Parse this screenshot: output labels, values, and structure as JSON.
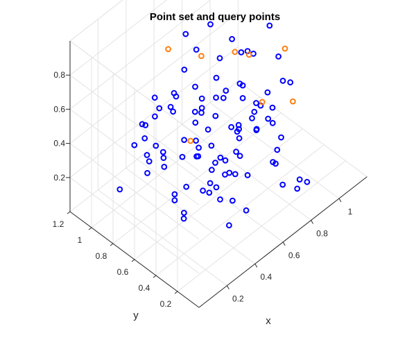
{
  "chart_data": {
    "type": "scatter",
    "title": "Point set and query points",
    "xlabel": "x",
    "ylabel": "y",
    "zlabel": "",
    "grid": true,
    "legend": "none",
    "x_ticks": [
      "0.2",
      "0.4",
      "0.6",
      "0.8",
      "1"
    ],
    "y_ticks": [
      "0.2",
      "0.4",
      "0.6",
      "0.8",
      "1",
      "1.2"
    ],
    "z_ticks": [
      "0.2",
      "0.4",
      "0.6",
      "0.8"
    ],
    "colors": {
      "point_set": "#0000ff",
      "query_points": "#ff7f0e"
    },
    "series": [
      {
        "points": [
          [
            0.82,
            0.29,
            0.06
          ],
          [
            0.91,
            0.18,
            0.07
          ],
          [
            0.88,
            0.21,
            0.09
          ],
          [
            0.74,
            0.05,
            0.2
          ],
          [
            0.97,
            0.58,
            0.28
          ],
          [
            0.67,
            0.16,
            0.34
          ],
          [
            0.46,
            0.16,
            0.2
          ],
          [
            0.62,
            0.08,
            0.49
          ],
          [
            0.33,
            0.15,
            0.2
          ],
          [
            0.15,
            0.1,
            0.53
          ],
          [
            0.45,
            0.55,
            0.14
          ],
          [
            0.57,
            0.46,
            0.21
          ],
          [
            0.26,
            0.48,
            0.13
          ],
          [
            0.71,
            0.68,
            0.09
          ],
          [
            0.69,
            0.7,
            0.11
          ],
          [
            0.62,
            0.58,
            0.56
          ],
          [
            0.42,
            0.55,
            0.41
          ],
          [
            0.56,
            0.35,
            0.79
          ],
          [
            0.47,
            0.08,
            0.86
          ],
          [
            0.25,
            0.65,
            0.36
          ],
          [
            0.35,
            0.94,
            0.23
          ],
          [
            0.22,
            0.62,
            0.48
          ],
          [
            0.16,
            0.61,
            0.56
          ],
          [
            0.11,
            0.88,
            0.21
          ],
          [
            0.13,
            0.65,
            0.4
          ],
          [
            0.21,
            0.5,
            0.26
          ],
          [
            0.73,
            0.79,
            0.51
          ],
          [
            0.8,
            0.65,
            0.68
          ],
          [
            0.51,
            0.7,
            0.64
          ],
          [
            0.44,
            0.61,
            0.58
          ],
          [
            0.88,
            0.49,
            0.86
          ],
          [
            0.79,
            0.29,
            0.83
          ],
          [
            0.27,
            0.88,
            0.49
          ],
          [
            0.19,
            0.48,
            0.91
          ],
          [
            0.39,
            0.92,
            0.55
          ],
          [
            0.65,
            0.44,
            0.68
          ],
          [
            0.78,
            0.51,
            0.75
          ],
          [
            0.44,
            0.71,
            0.78
          ],
          [
            0.18,
            0.74,
            0.53
          ],
          [
            0.26,
            0.58,
            0.71
          ],
          [
            0.43,
            0.31,
            0.85
          ],
          [
            0.48,
            0.65,
            0.9
          ],
          [
            0.47,
            0.16,
            0.4
          ],
          [
            0.35,
            0.49,
            0.63
          ],
          [
            0.65,
            0.82,
            0.37
          ],
          [
            0.58,
            0.88,
            0.82
          ],
          [
            0.55,
            0.31,
            0.73
          ],
          [
            0.44,
            0.08,
            0.79
          ],
          [
            0.28,
            0.52,
            0.46
          ],
          [
            0.32,
            0.88,
            0.24
          ],
          [
            0.49,
            0.52,
            0.25
          ],
          [
            0.6,
            0.41,
            0.47
          ],
          [
            0.33,
            0.76,
            0.31
          ],
          [
            0.5,
            0.68,
            0.34
          ],
          [
            0.23,
            0.71,
            0.64
          ],
          [
            0.6,
            0.63,
            0.17
          ],
          [
            0.67,
            0.23,
            0.57
          ],
          [
            0.82,
            0.91,
            0.28
          ],
          [
            0.55,
            0.69,
            0.55
          ],
          [
            0.42,
            0.57,
            0.35
          ],
          [
            0.37,
            0.49,
            0.42
          ],
          [
            0.69,
            0.53,
            0.38
          ],
          [
            0.86,
            0.34,
            0.62
          ],
          [
            0.25,
            0.21,
            0.69
          ],
          [
            0.52,
            0.34,
            0.29
          ],
          [
            0.27,
            0.49,
            0.58
          ],
          [
            0.75,
            0.67,
            0.78
          ],
          [
            0.79,
            0.18,
            0.73
          ],
          [
            0.41,
            0.45,
            0.57
          ],
          [
            0.57,
            0.72,
            0.44
          ],
          [
            0.77,
            0.43,
            0.49
          ],
          [
            0.64,
            0.3,
            0.49
          ],
          [
            0.11,
            0.37,
            0.42
          ],
          [
            0.37,
            0.24,
            0.43
          ],
          [
            0.51,
            0.29,
            0.53
          ],
          [
            0.37,
            0.6,
            0.19
          ],
          [
            0.3,
            0.89,
            0.46
          ],
          [
            0.16,
            0.81,
            0.47
          ],
          [
            0.81,
            0.37,
            0.39
          ],
          [
            0.43,
            0.26,
            0.66
          ],
          [
            0.22,
            0.09,
            0.45
          ],
          [
            0.55,
            0.93,
            0.45
          ],
          [
            0.72,
            0.3,
            0.66
          ],
          [
            0.58,
            0.41,
            0.35
          ],
          [
            0.74,
            0.2,
            0.43
          ],
          [
            0.62,
            0.12,
            0.4
          ],
          [
            0.4,
            0.36,
            0.28
          ],
          [
            0.45,
            0.85,
            0.49
          ],
          [
            0.31,
            0.3,
            0.39
          ],
          [
            0.7,
            0.46,
            0.84
          ],
          [
            0.55,
            0.18,
            0.61
          ],
          [
            0.68,
            0.78,
            0.86
          ],
          [
            0.71,
            0.57,
            0.31
          ],
          [
            0.2,
            0.4,
            0.24
          ],
          [
            0.37,
            0.17,
            0.31
          ],
          [
            0.51,
            0.15,
            0.75
          ],
          [
            0.77,
            0.81,
            0.59
          ],
          [
            0.63,
            0.44,
            0.28
          ],
          [
            0.3,
            0.76,
            0.62
          ],
          [
            0.54,
            0.55,
            0.52
          ]
        ]
      },
      {
        "points": [
          [
            0.91,
            0.91,
            0.88
          ],
          [
            0.7,
            0.89,
            0.61
          ],
          [
            0.44,
            0.86,
            0.83
          ],
          [
            0.74,
            0.63,
            0.73
          ],
          [
            0.4,
            0.6,
            0.44
          ],
          [
            0.89,
            0.36,
            0.78
          ],
          [
            0.68,
            0.42,
            0.85
          ],
          [
            0.87,
            0.26,
            0.53
          ],
          [
            0.72,
            0.35,
            0.58
          ]
        ]
      }
    ]
  }
}
